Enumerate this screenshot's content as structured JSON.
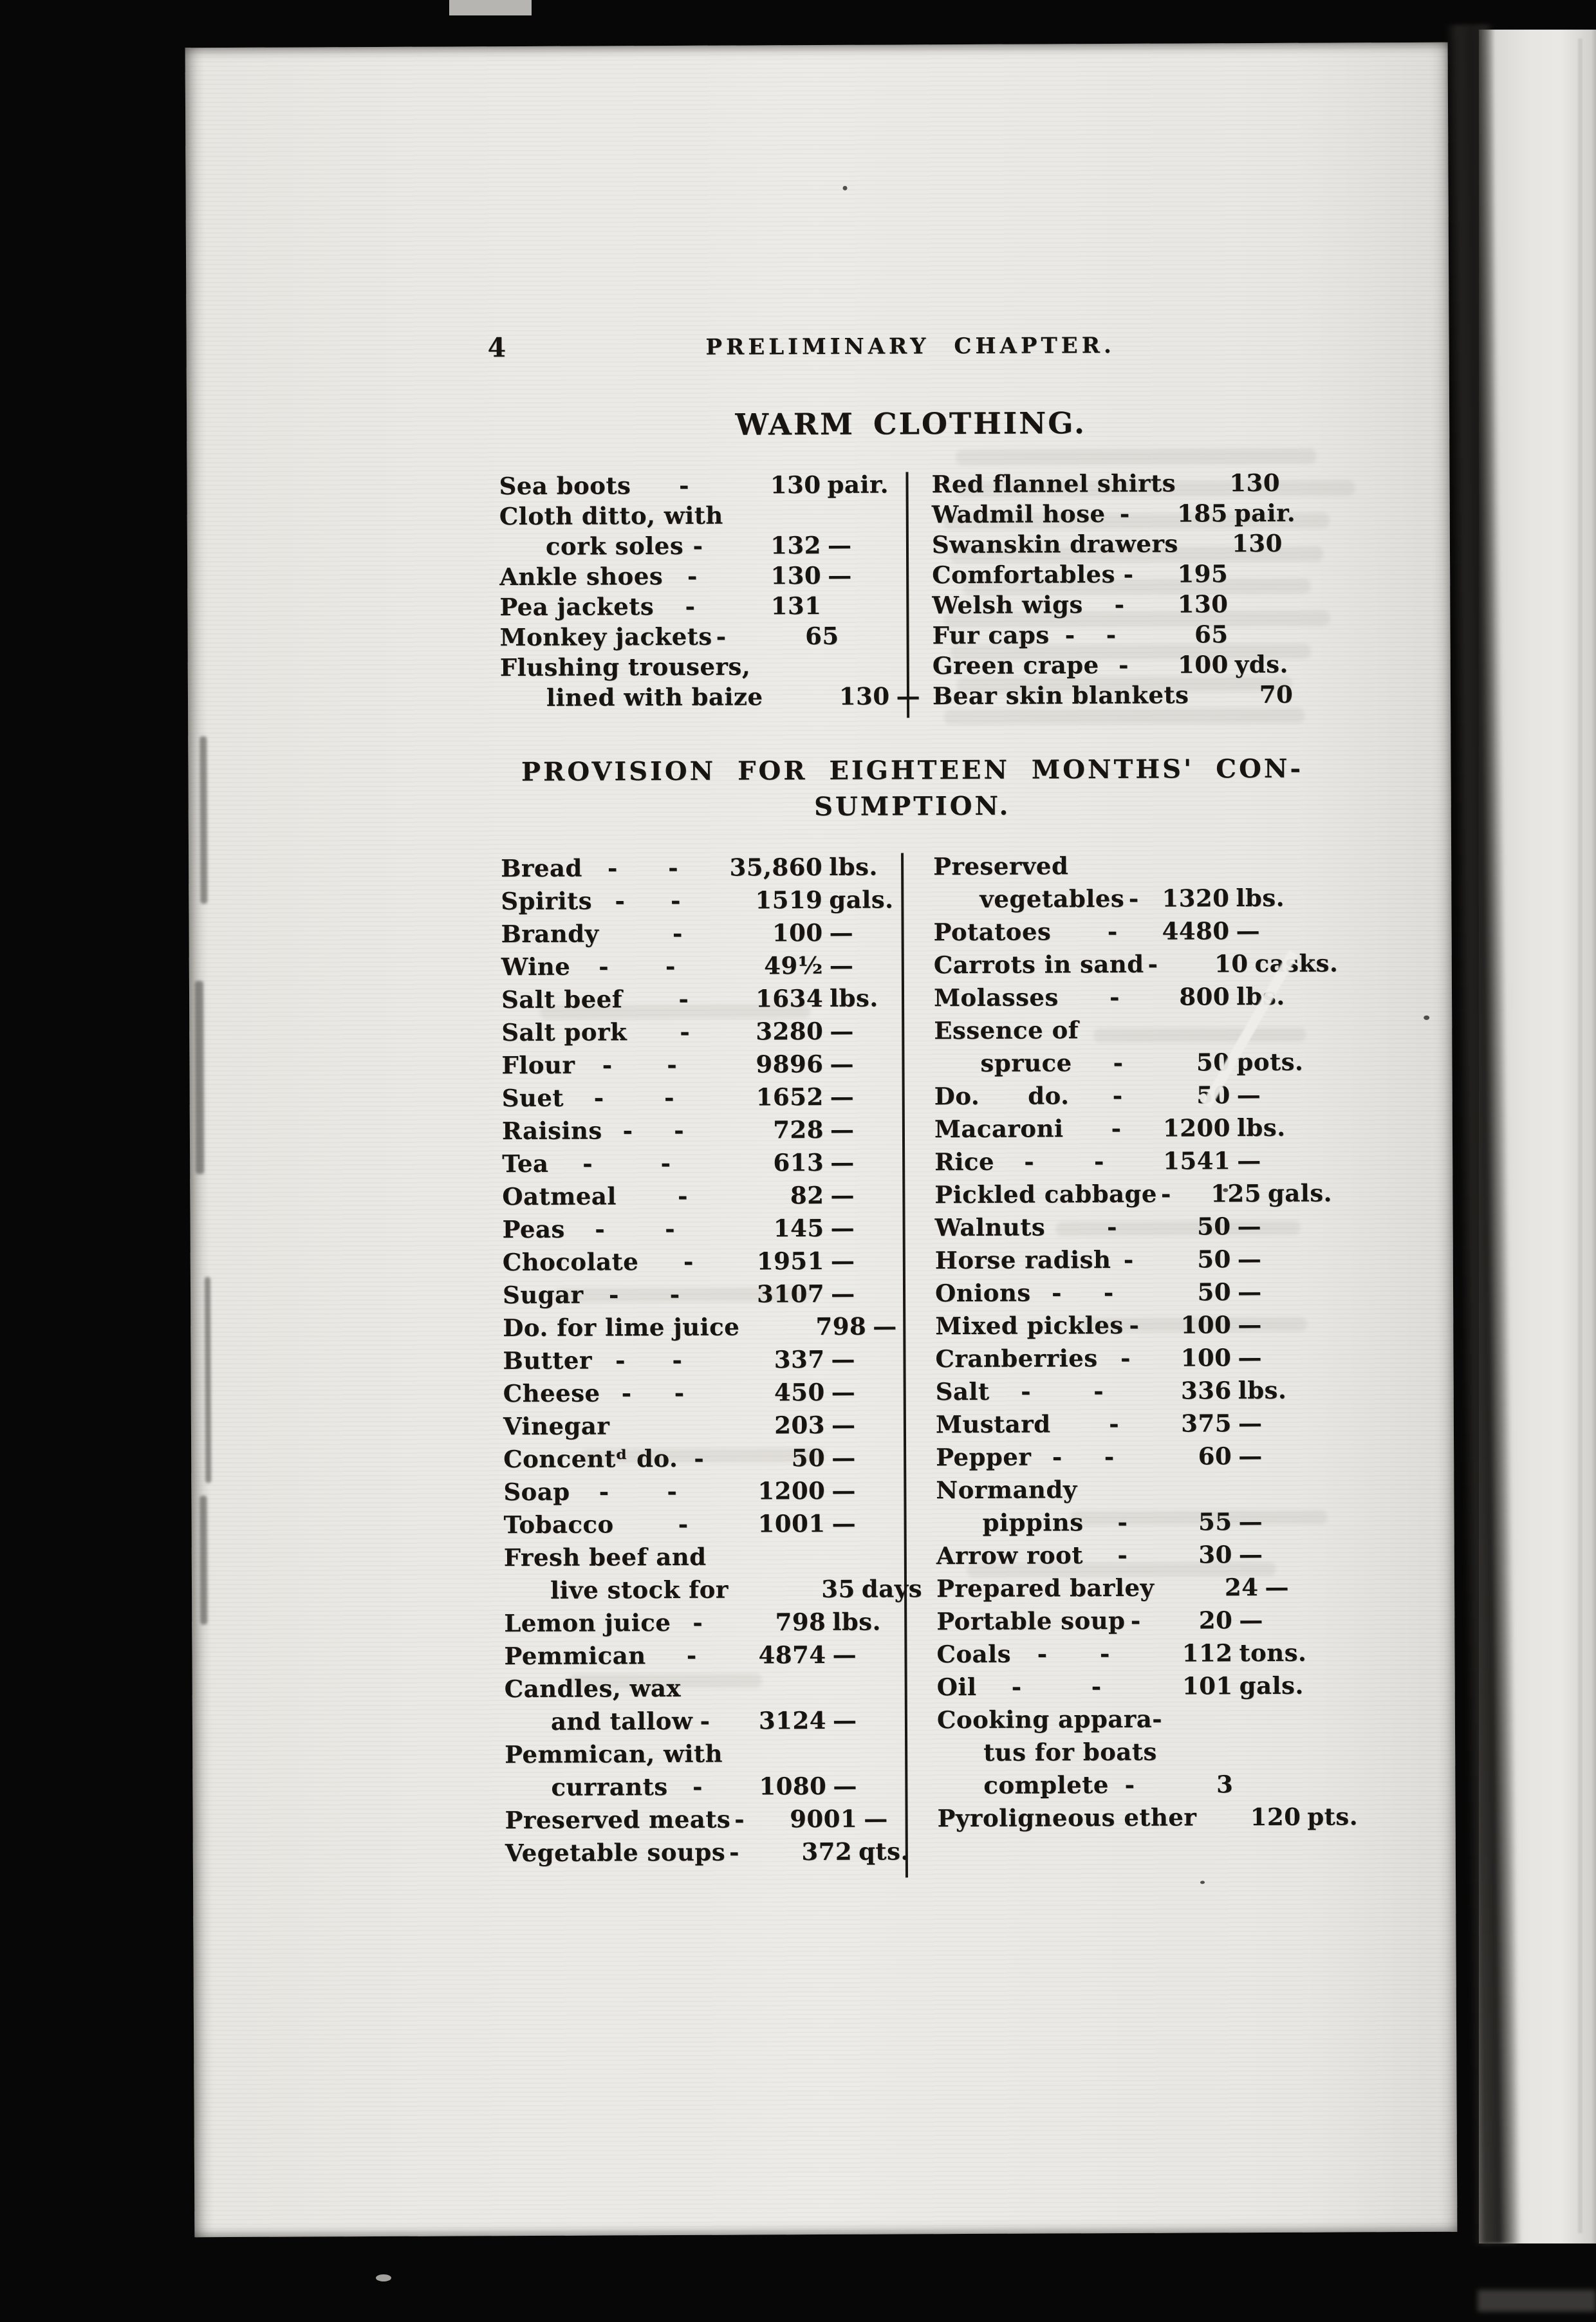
{
  "page": {
    "number": "4",
    "running_header": "PRELIMINARY CHAPTER.",
    "clothing": {
      "title": "WARM CLOTHING.",
      "left": [
        {
          "item": "Sea boots",
          "d2": "-",
          "qty": "130",
          "unit": "pair."
        },
        {
          "item": "Cloth ditto, with"
        },
        {
          "item": "cork soles",
          "indent": true,
          "d2": "-",
          "qty": "132",
          "unit": "—"
        },
        {
          "item": "Ankle shoes",
          "d2": "-",
          "qty": "130",
          "unit": "—"
        },
        {
          "item": "Pea jackets",
          "d2": "-",
          "qty": "131"
        },
        {
          "item": "Monkey jackets",
          "d2": "-",
          "qty": "65"
        },
        {
          "item": "Flushing trousers,"
        },
        {
          "item": "lined with baize",
          "indent": true,
          "qty": "130",
          "unit": "—"
        }
      ],
      "right": [
        {
          "item": "Red flannel shirts",
          "qty": "130"
        },
        {
          "item": "Wadmil hose",
          "d2": "-",
          "qty": "185",
          "unit": "pair."
        },
        {
          "item": "Swanskin drawers",
          "qty": "130"
        },
        {
          "item": "Comfortables",
          "d2": "-",
          "qty": "195"
        },
        {
          "item": "Welsh wigs",
          "d2": "-",
          "qty": "130"
        },
        {
          "item": "Fur caps",
          "d1": "-",
          "d2": "-",
          "qty": "65"
        },
        {
          "item": "Green crape",
          "d2": "-",
          "qty": "100",
          "unit": "yds."
        },
        {
          "item": "Bear skin blankets",
          "qty": "70"
        }
      ]
    },
    "provisions": {
      "title_line1": "PROVISION FOR EIGHTEEN MONTHS' CON-",
      "title_line2": "SUMPTION.",
      "left": [
        {
          "item": "Bread",
          "d1": "-",
          "d2": "-",
          "qty": "35,860",
          "unit": "lbs."
        },
        {
          "item": "Spirits",
          "d1": "-",
          "d2": "-",
          "qty": "1519",
          "unit": "gals."
        },
        {
          "item": "Brandy",
          "d2": "-",
          "qty": "100",
          "unit": "—"
        },
        {
          "item": "Wine",
          "d1": "-",
          "d2": "-",
          "qty": "49½",
          "unit": "—"
        },
        {
          "item": "Salt beef",
          "d2": "-",
          "qty": "1634",
          "unit": "lbs."
        },
        {
          "item": "Salt pork",
          "d2": "-",
          "qty": "3280",
          "unit": "—"
        },
        {
          "item": "Flour",
          "d1": "-",
          "d2": "-",
          "qty": "9896",
          "unit": "—"
        },
        {
          "item": "Suet",
          "d1": "-",
          "d2": "-",
          "qty": "1652",
          "unit": "—"
        },
        {
          "item": "Raisins",
          "d1": "-",
          "d2": "-",
          "qty": "728",
          "unit": "—"
        },
        {
          "item": "Tea",
          "d1": "-",
          "d2": "-",
          "qty": "613",
          "unit": "—"
        },
        {
          "item": "Oatmeal",
          "d2": "-",
          "qty": "82",
          "unit": "—"
        },
        {
          "item": "Peas",
          "d1": "-",
          "d2": "-",
          "qty": "145",
          "unit": "—"
        },
        {
          "item": "Chocolate",
          "d2": "-",
          "qty": "1951",
          "unit": "—"
        },
        {
          "item": "Sugar",
          "d1": "-",
          "d2": "-",
          "qty": "3107",
          "unit": "—"
        },
        {
          "item": "Do. for lime juice",
          "qty": "798",
          "unit": "—"
        },
        {
          "item": "Butter",
          "d1": "-",
          "d2": "-",
          "qty": "337",
          "unit": "—"
        },
        {
          "item": "Cheese",
          "d1": "-",
          "d2": "-",
          "qty": "450",
          "unit": "—"
        },
        {
          "item": "Vinegar",
          "qty": "203",
          "unit": "—"
        },
        {
          "item": "Concentᵈ do.",
          "d2": "-",
          "qty": "50",
          "unit": "—"
        },
        {
          "item": "Soap",
          "d1": "-",
          "d2": "-",
          "qty": "1200",
          "unit": "—"
        },
        {
          "item": "Tobacco",
          "d2": "-",
          "qty": "1001",
          "unit": "—"
        },
        {
          "item": "Fresh beef and"
        },
        {
          "item": "live stock for",
          "indent": true,
          "qty": "35",
          "unit": "days"
        },
        {
          "item": "Lemon juice",
          "d2": "-",
          "qty": "798",
          "unit": "lbs."
        },
        {
          "item": "Pemmican",
          "d2": "-",
          "qty": "4874",
          "unit": "—"
        },
        {
          "item": "Candles, wax"
        },
        {
          "item": "and tallow",
          "indent": true,
          "d2": "-",
          "qty": "3124",
          "unit": "—"
        },
        {
          "item": "Pemmican, with"
        },
        {
          "item": "currants",
          "indent": true,
          "d2": "-",
          "qty": "1080",
          "unit": "—"
        },
        {
          "item": "Preserved meats",
          "d2": "-",
          "qty": "9001",
          "unit": "—"
        },
        {
          "item": "Vegetable soups",
          "d2": "-",
          "qty": "372",
          "unit": "qts."
        }
      ],
      "right": [
        {
          "item": "Preserved"
        },
        {
          "item": "vegetables",
          "indent": true,
          "d2": "-",
          "qty": "1320",
          "unit": "lbs."
        },
        {
          "item": "Potatoes",
          "d2": "-",
          "qty": "4480",
          "unit": "—"
        },
        {
          "item": "Carrots in sand",
          "d2": "-",
          "qty": "10",
          "unit": "casks."
        },
        {
          "item": "Molasses",
          "d2": "-",
          "qty": "800",
          "unit": "lbs."
        },
        {
          "item": "Essence of"
        },
        {
          "item": "spruce",
          "indent": true,
          "d2": "-",
          "qty": "50",
          "unit": "pots."
        },
        {
          "item": "Do.  do.",
          "d2": "-",
          "qty": "50",
          "unit": "—"
        },
        {
          "item": "Macaroni",
          "d2": "-",
          "qty": "1200",
          "unit": "lbs."
        },
        {
          "item": "Rice",
          "d1": "-",
          "d2": "-",
          "qty": "1541",
          "unit": "—"
        },
        {
          "item": "Pickled cabbage",
          "d2": "-",
          "qty": "125",
          "unit": "gals."
        },
        {
          "item": "Walnuts",
          "d2": "-",
          "qty": "50",
          "unit": "—"
        },
        {
          "item": "Horse radish",
          "d2": "-",
          "qty": "50",
          "unit": "—"
        },
        {
          "item": "Onions",
          "d1": "-",
          "d2": "-",
          "qty": "50",
          "unit": "—"
        },
        {
          "item": "Mixed pickles",
          "d2": "-",
          "qty": "100",
          "unit": "—"
        },
        {
          "item": "Cranberries",
          "d2": "-",
          "qty": "100",
          "unit": "—"
        },
        {
          "item": "Salt",
          "d1": "-",
          "d2": "-",
          "qty": "336",
          "unit": "lbs."
        },
        {
          "item": "Mustard",
          "d2": "-",
          "qty": "375",
          "unit": "—"
        },
        {
          "item": "Pepper",
          "d1": "-",
          "d2": "-",
          "qty": "60",
          "unit": "—"
        },
        {
          "item": "Normandy"
        },
        {
          "item": "pippins",
          "indent": true,
          "d2": "-",
          "qty": "55",
          "unit": "—"
        },
        {
          "item": "Arrow root",
          "d2": "-",
          "qty": "30",
          "unit": "—"
        },
        {
          "item": "Prepared barley",
          "qty": "24",
          "unit": "—"
        },
        {
          "item": "Portable soup",
          "d2": "-",
          "qty": "20",
          "unit": "—"
        },
        {
          "item": "Coals",
          "d1": "-",
          "d2": "-",
          "qty": "112",
          "unit": "tons."
        },
        {
          "item": "Oil",
          "d1": "-",
          "d2": "-",
          "qty": "101",
          "unit": "gals."
        },
        {
          "item": "Cooking appara-"
        },
        {
          "item": "tus for boats",
          "indent": true
        },
        {
          "item": "complete",
          "indent": true,
          "d2": "-",
          "qty": "3"
        },
        {
          "item": "Pyroligneous ether",
          "qty": "120",
          "unit": "pts."
        }
      ]
    }
  }
}
